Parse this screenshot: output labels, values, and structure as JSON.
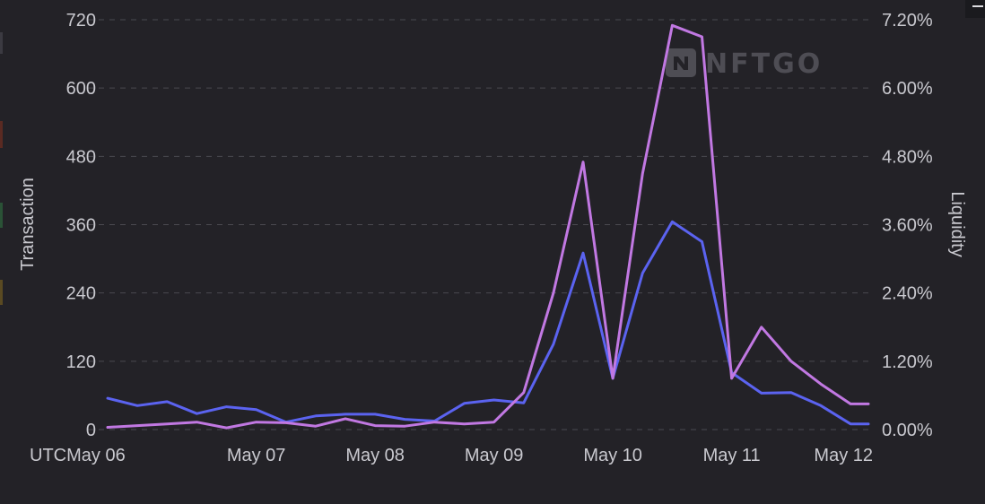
{
  "chart_data": {
    "type": "line",
    "ylabel": "Transaction",
    "y2label": "Liquidity",
    "ylim": [
      0,
      720
    ],
    "y2lim": [
      0,
      7.2
    ],
    "yticks": [
      "0",
      "120",
      "240",
      "360",
      "480",
      "600",
      "720"
    ],
    "y2ticks": [
      "0.00%",
      "1.20%",
      "2.40%",
      "3.60%",
      "4.80%",
      "6.00%",
      "7.20%"
    ],
    "xtick_labels": [
      "UTCMay 06",
      "May 07",
      "May 08",
      "May 09",
      "May 10",
      "May 11",
      "May 12"
    ],
    "xticks_pos": [
      0.5,
      2.5,
      4.5,
      6.5,
      8.5,
      10.5,
      12.5
    ],
    "xlim": [
      0,
      12.8
    ],
    "grid": true,
    "series": [
      {
        "axis": "right",
        "color": "#5b63f0",
        "x": [
          0,
          0.5,
          1,
          1.5,
          2,
          2.5,
          3,
          3.5,
          4,
          4.5,
          5,
          5.5,
          6,
          6.5,
          7,
          7.5,
          8,
          8.5,
          9,
          9.5,
          10,
          10.5,
          11,
          11.5,
          12,
          12.5,
          13
        ],
        "values": [
          0.55,
          0.42,
          0.49,
          0.28,
          0.4,
          0.35,
          0.13,
          0.24,
          0.27,
          0.27,
          0.18,
          0.15,
          0.46,
          0.52,
          0.47,
          1.5,
          3.1,
          0.9,
          2.75,
          3.65,
          3.3,
          1.0,
          0.64,
          0.65,
          0.42,
          0.1,
          0.1
        ]
      },
      {
        "axis": "right",
        "color": "#c178e2",
        "x": [
          0,
          0.5,
          1,
          1.5,
          2,
          2.5,
          3,
          3.5,
          4,
          4.5,
          5,
          5.5,
          6,
          6.5,
          7,
          7.5,
          8,
          8.5,
          9,
          9.5,
          10,
          10.5,
          11,
          11.5,
          12,
          12.5,
          13
        ],
        "values": [
          0.04,
          0.07,
          0.1,
          0.13,
          0.03,
          0.13,
          0.12,
          0.06,
          0.19,
          0.07,
          0.06,
          0.13,
          0.1,
          0.13,
          0.65,
          2.4,
          4.7,
          0.9,
          4.5,
          7.1,
          6.9,
          0.9,
          1.8,
          1.2,
          0.8,
          0.45,
          0.45
        ]
      }
    ]
  },
  "watermark": {
    "text": "NFTGO",
    "icon": "nftgo-logo-icon"
  }
}
